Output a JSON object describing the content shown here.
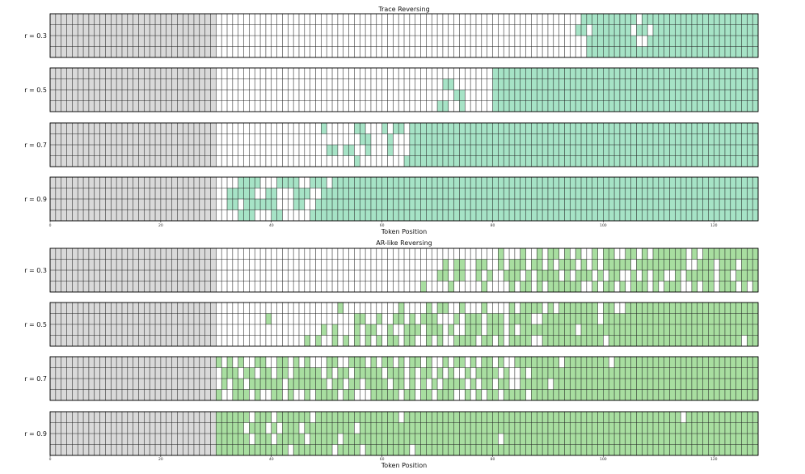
{
  "colors": {
    "prompt": "#d9d9d9",
    "trace_fill": "#a6e3c6",
    "ar_fill": "#a8dea0",
    "empty": "#ffffff",
    "grid": "#222222"
  },
  "chart_data": [
    {
      "type": "heatmap",
      "title": "Trace Reversing",
      "xlabel": "Token Position",
      "x_ticks": [
        0,
        20,
        40,
        60,
        80,
        100,
        120
      ],
      "xlim": [
        0,
        128
      ],
      "rows_per_panel": 4,
      "prompt_length": 30,
      "panels": [
        {
          "label": "r = 0.3",
          "rows": [
            "000000000000000000000000000000000000000000000000000000000000000000000000000000000000000000000000111111111101111111111111111111111",
            "000000000000000000000000000000000000000000000000000000000000000000000000000000000000000000000001101111111011011111111111111111111",
            "000000000000000000000000000000000000000000000000000000000000000000000000000000000000000000000000011111111100111111111111111111111",
            "000000000000000000000000000000000000000000000000000000000000000000000000000000000000000000000000011111111111111111111111111111111"
          ]
        },
        {
          "label": "r = 0.5",
          "rows": [
            "000000000000000000000000000000000000000000000000000000000000000000000000000000001111111111111111111111111111111111111111111111111",
            "000000000000000000000000000000000000000000000000000000000000000000000001100000001111111111111111111111111111111111111111111111111",
            "000000000000000000000000000000000000000000000000000000000000000000000000011000001111111111111111111111111111111111111111111111111",
            "000000000000000000000000000000000000000000000000000000000000000000000011001000001111111111111111111111111111111111111111111111111"
          ]
        },
        {
          "label": "r = 0.7",
          "rows": [
            "000000000000000000000000000000000000000000000000010000011000101101111111111111111111111111111111111111111111111111111111111111111",
            "000000000000000000000000000000000000000000000000000000001100010001111111111111111111111111111111111111111111111111111111111111111",
            "000000000000000000000000000000000000000000000000001101100100010001111111111111111111111111111111111111111111111111111111111111111",
            "000000000000000000000000000000000000000000000000000000010000000011111111111111111111111111111111111111111111111111111111111111111"
          ]
        },
        {
          "label": "r = 0.9",
          "rows": [
            "000000000000000000000000000000000011110001111001110111111111111111111111111111111111111111111111111111111111111111111111111111111",
            "000000000000000000000000000000001111100110001110011111111111111111111111111111111111111111111111111111111111111111111111111111111",
            "000000000000000000000000000000001101111110001100111111111111111111111111111111111111111111111111111111111111111111111111111111111",
            "000000000000000000000000000000000011100011000001111111111111111111111111111111111111111111111111111111111111111111111111111111111"
          ]
        }
      ]
    },
    {
      "type": "heatmap",
      "title": "AR-like Reversing",
      "xlabel": "Token Position",
      "x_ticks": [
        0,
        20,
        40,
        60,
        80,
        100,
        120
      ],
      "xlim": [
        0,
        128
      ],
      "rows_per_panel": 4,
      "prompt_length": 30,
      "panels": [
        {
          "label": "r = 0.3",
          "rows": [
            "000000000000000000000000000000000000000000000000000000000000000000000000000000000100010010110101001011001101011111101011111111111",
            "000000000000000000000000000000000000000000000000000000000000000000000001011001100101110110101110101011111011111111100111011101111",
            "000000000000000000000000000000000000000000000000000000000000000000000011011001010011101011110101110101100101011001011111011011111",
            "000000000000000000000000000000000000000000000000000000000000000000010000100000100001011010111111001011010111010111001011011101011"
          ]
        },
        {
          "label": "r = 0.5",
          "rows": [
            "000000000000000000000000000000000000000000000000000010000000000100001011001000100001011110101111111011001111111111111111111111111",
            "000000000000000000000000000000000000000100000000000000011001001101011100010111011101111001111111111011111111111111111111111111111",
            "000000000000000000000000000000000000000000000000010100010110010011101110100111011101011111111110111111111111111111111111111111111",
            "000000000000000000000000000000000000000000000010100101010101011011001010011110110101111001111111111101111111111111111111111110111"
          ]
        },
        {
          "label": "r = 0.7",
          "rows": [
            "000000000000000000000000000000101010011001101010001100111010110101101001011010110100111111110111111110111111111111111111111111111",
            "000000000000000000000000000000011101101101101111101011011111011101011010100101111010010111111111111111111111111111111111111111111",
            "000000000000000000000000000000010110111111011111110110110111101101010101111010110110011111011111111111111111111111111111111111111",
            "000000000000000000000000000000100111010011010010111101100011111011011011100101011011110111111111111111111111111111111111111111111"
          ]
        },
        {
          "label": "r = 0.9",
          "rows": [
            "000000000000000000000000000000111111011101111110111111111111111011111111111111111111111111111111111111111111111111011111111111111",
            "000000000000000000000000000000111110111010111011111111101111111111111111111111111111111111111111111111111111111111111111111111111",
            "000000000000000000000000000000111111011101111101111101111111111111111111111111111011111111111111111111111111111111111111111111111",
            "000000000000000000000000000000111111111111101111111011110111111110111111111111111111111111111111111111111111111111111111111111111"
          ]
        }
      ]
    }
  ]
}
